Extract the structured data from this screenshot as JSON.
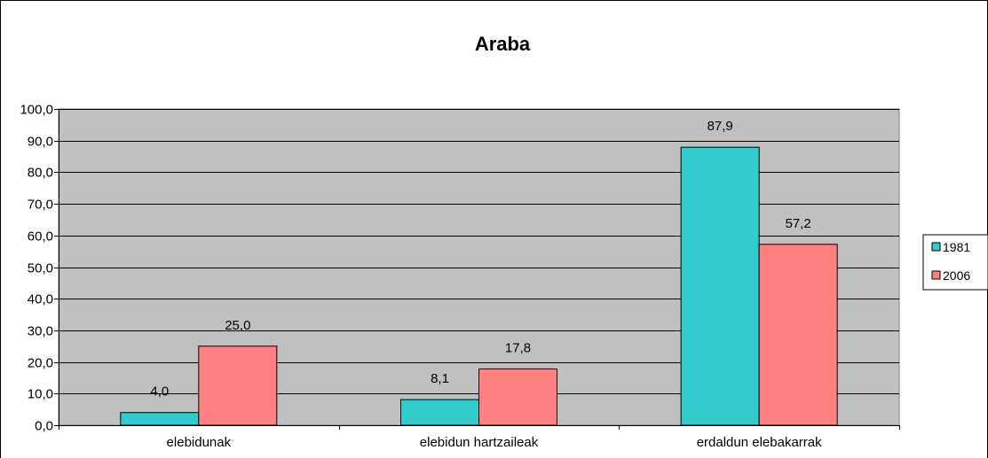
{
  "chart_data": {
    "type": "bar",
    "title": "Araba",
    "xlabel": "",
    "ylabel": "",
    "categories": [
      "elebidunak",
      "elebidun hartzaileak",
      "erdaldun elebakarrak"
    ],
    "series": [
      {
        "name": "1981",
        "values": [
          4.0,
          8.1,
          87.9
        ],
        "value_labels": [
          "4,0",
          "8,1",
          "87,9"
        ],
        "color": "#33CCCC"
      },
      {
        "name": "2006",
        "values": [
          25.0,
          17.8,
          57.2
        ],
        "value_labels": [
          "25,0",
          "17,8",
          "57,2"
        ],
        "color": "#FF8080"
      }
    ],
    "ylim": [
      0,
      100
    ],
    "y_ticks": [
      0,
      10,
      20,
      30,
      40,
      50,
      60,
      70,
      80,
      90,
      100
    ],
    "y_tick_labels": [
      "0,0",
      "10,0",
      "20,0",
      "30,0",
      "40,0",
      "50,0",
      "60,0",
      "70,0",
      "80,0",
      "90,0",
      "100,0"
    ],
    "grid": true,
    "legend_position": "right",
    "plot_background": "#C0C0C0",
    "gridline_color": "#000000"
  }
}
